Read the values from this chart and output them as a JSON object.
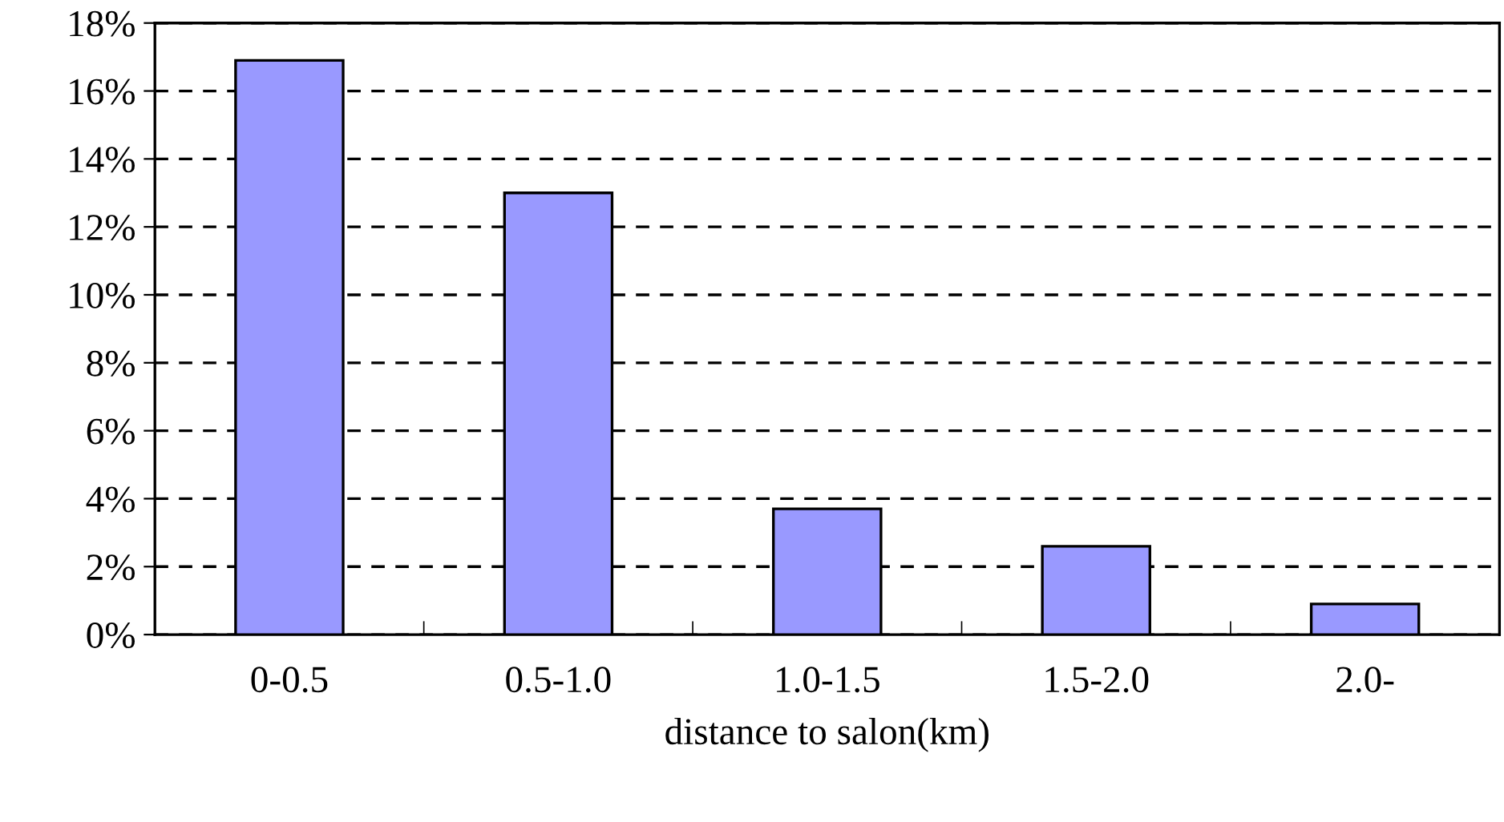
{
  "chart_data": {
    "type": "bar",
    "xlabel": "distance to salon(km)",
    "categories": [
      "0-0.5",
      "0.5-1.0",
      "1.0-1.5",
      "1.5-2.0",
      "2.0-"
    ],
    "values": [
      16.9,
      13.0,
      3.7,
      2.6,
      0.9
    ],
    "color": "#9999ff",
    "ylim": [
      0,
      18
    ],
    "yticks": [
      {
        "value": 0,
        "label": "0%"
      },
      {
        "value": 2,
        "label": "2%"
      },
      {
        "value": 4,
        "label": "4%"
      },
      {
        "value": 6,
        "label": "6%"
      },
      {
        "value": 8,
        "label": "8%"
      },
      {
        "value": 10,
        "label": "10%"
      },
      {
        "value": 12,
        "label": "12%"
      },
      {
        "value": 14,
        "label": "14%"
      },
      {
        "value": 16,
        "label": "16%"
      },
      {
        "value": 18,
        "label": "18%"
      }
    ],
    "grid": "y",
    "line_style": "dashed"
  }
}
